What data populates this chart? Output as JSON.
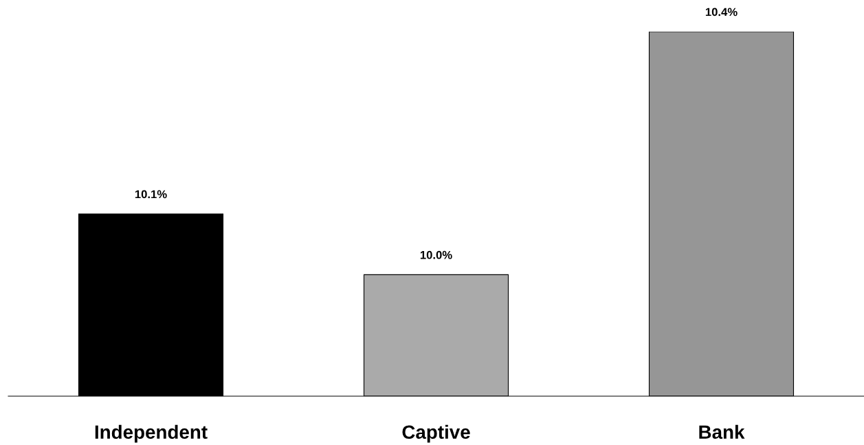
{
  "chart_data": {
    "type": "bar",
    "categories": [
      "Independent",
      "Captive",
      "Bank"
    ],
    "values": [
      10.1,
      10.0,
      10.4
    ],
    "colors": [
      "#000000",
      "#aaaaaa",
      "#969696"
    ],
    "value_labels": [
      "10.1%",
      "10.0%",
      "10.4%"
    ],
    "ylim": [
      9.8,
      10.4
    ],
    "grid": false,
    "legend": false
  }
}
